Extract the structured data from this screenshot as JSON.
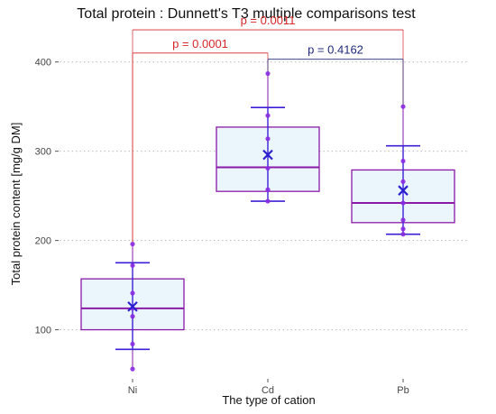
{
  "chart_data": {
    "type": "box",
    "title": "Total protein : Dunnett's T3 multiple comparisons test",
    "xlabel": "The type of cation",
    "ylabel": "Total protein content [mg/g DM]",
    "categories": [
      "Ni",
      "Cd",
      "Pb"
    ],
    "ylim": [
      45,
      430
    ],
    "yticks": [
      100,
      200,
      300,
      400
    ],
    "grid": "horizontal dotted",
    "boxes": [
      {
        "category": "Ni",
        "q1": 100,
        "median": 124,
        "q3": 157,
        "whisker_low": 56,
        "whisker_high": 196,
        "mean": 126,
        "sd_low": 78,
        "sd_high": 175,
        "points": [
          56,
          84,
          115,
          124,
          141,
          172,
          196
        ]
      },
      {
        "category": "Cd",
        "q1": 255,
        "median": 282,
        "q3": 327,
        "whisker_low": 244,
        "whisker_high": 387,
        "mean": 296,
        "sd_low": 244,
        "sd_high": 349,
        "points": [
          244,
          257,
          281,
          314,
          340,
          387
        ]
      },
      {
        "category": "Pb",
        "q1": 220,
        "median": 242,
        "q3": 279,
        "whisker_low": 207,
        "whisker_high": 350,
        "mean": 256,
        "sd_low": 207,
        "sd_high": 306,
        "points": [
          207,
          213,
          223,
          242,
          266,
          289,
          350
        ]
      }
    ],
    "comparisons": [
      {
        "from": "Ni",
        "to": "Cd",
        "label": "p =  0.0001",
        "color": "#d62728",
        "level": 410
      },
      {
        "from": "Ni",
        "to": "Pb",
        "label": "p =  0.0011",
        "color": "#d62728",
        "level": 436
      },
      {
        "from": "Cd",
        "to": "Pb",
        "label": "p =  0.4162",
        "color": "#1f2a7a",
        "level": 403
      }
    ],
    "colors": {
      "box": "#8a1aa8",
      "box_fill": "#eaf6fc",
      "errorbar": "#3b1fd6",
      "mean_marker": "#2b1fd0",
      "point": "#8a2be2",
      "grid": "#bbbbbb",
      "significant": "#d62728",
      "not_significant": "#1f2a7a"
    }
  }
}
